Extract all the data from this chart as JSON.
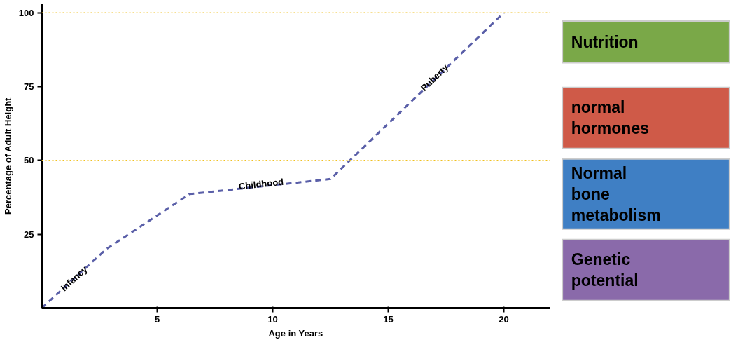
{
  "chart_data": [
    {
      "type": "line",
      "xlabel": "Age in Years",
      "ylabel": "Percentage of Adult Height",
      "x": [
        0,
        2.8,
        6.4,
        12.5,
        20
      ],
      "series": [
        {
          "color": "#5a5fa8",
          "values": [
            0,
            20,
            38.6,
            43.7,
            100
          ]
        }
      ],
      "xlim": [
        0,
        22
      ],
      "ylim": [
        0,
        103
      ],
      "xticks": [
        5,
        10,
        15,
        20
      ],
      "yticks": [
        25,
        50,
        75,
        100
      ],
      "grid": false,
      "line_style": "dashed",
      "marker": "none",
      "ref_lines": [
        {
          "axis": "y",
          "value": 50,
          "color": "#f0c020",
          "line_style": "dotted"
        },
        {
          "axis": "y",
          "value": 100,
          "color": "#f0c020",
          "line_style": "dotted"
        }
      ],
      "annotations": [
        {
          "text": "Infancy",
          "x": 1.4,
          "y": 10
        },
        {
          "text": "Childhood",
          "x": 9.5,
          "y": 42
        },
        {
          "text": "Puberty",
          "x": 17,
          "y": 78
        }
      ]
    },
    {
      "type": "other",
      "categories": [
        "Nutrition",
        "normal\nhormones",
        "Normal\nbone\nmetabolism",
        "Genetic\npotential"
      ],
      "colors": [
        "#7aa848",
        "#cf5a48",
        "#3f7fc4",
        "#8a6aaa"
      ]
    }
  ]
}
